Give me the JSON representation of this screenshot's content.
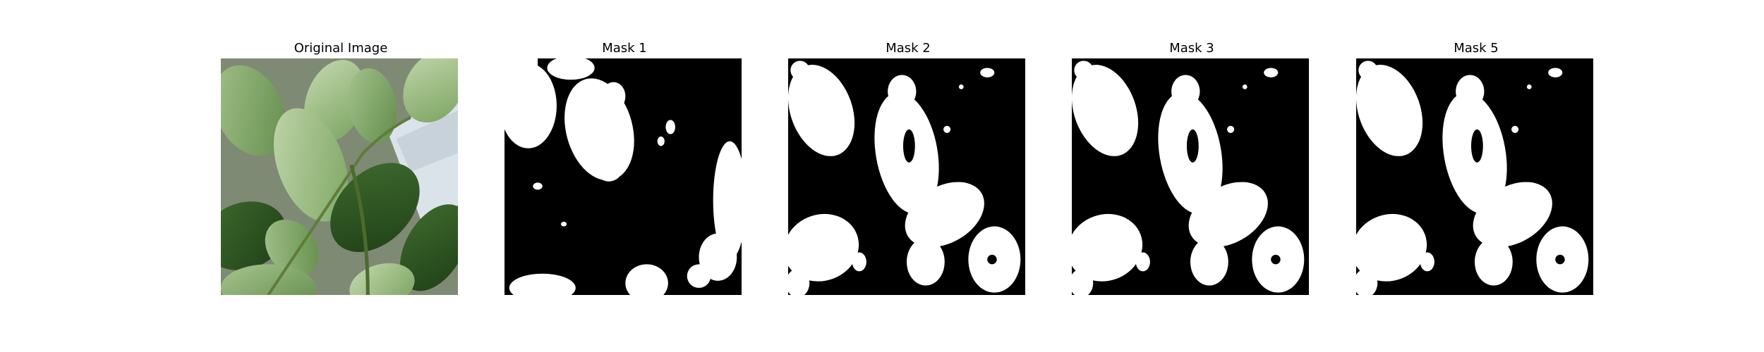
{
  "panels": [
    {
      "title": "Original Image"
    },
    {
      "title": "Mask 1"
    },
    {
      "title": "Mask 2"
    },
    {
      "title": "Mask 3"
    },
    {
      "title": "Mask 5"
    }
  ]
}
